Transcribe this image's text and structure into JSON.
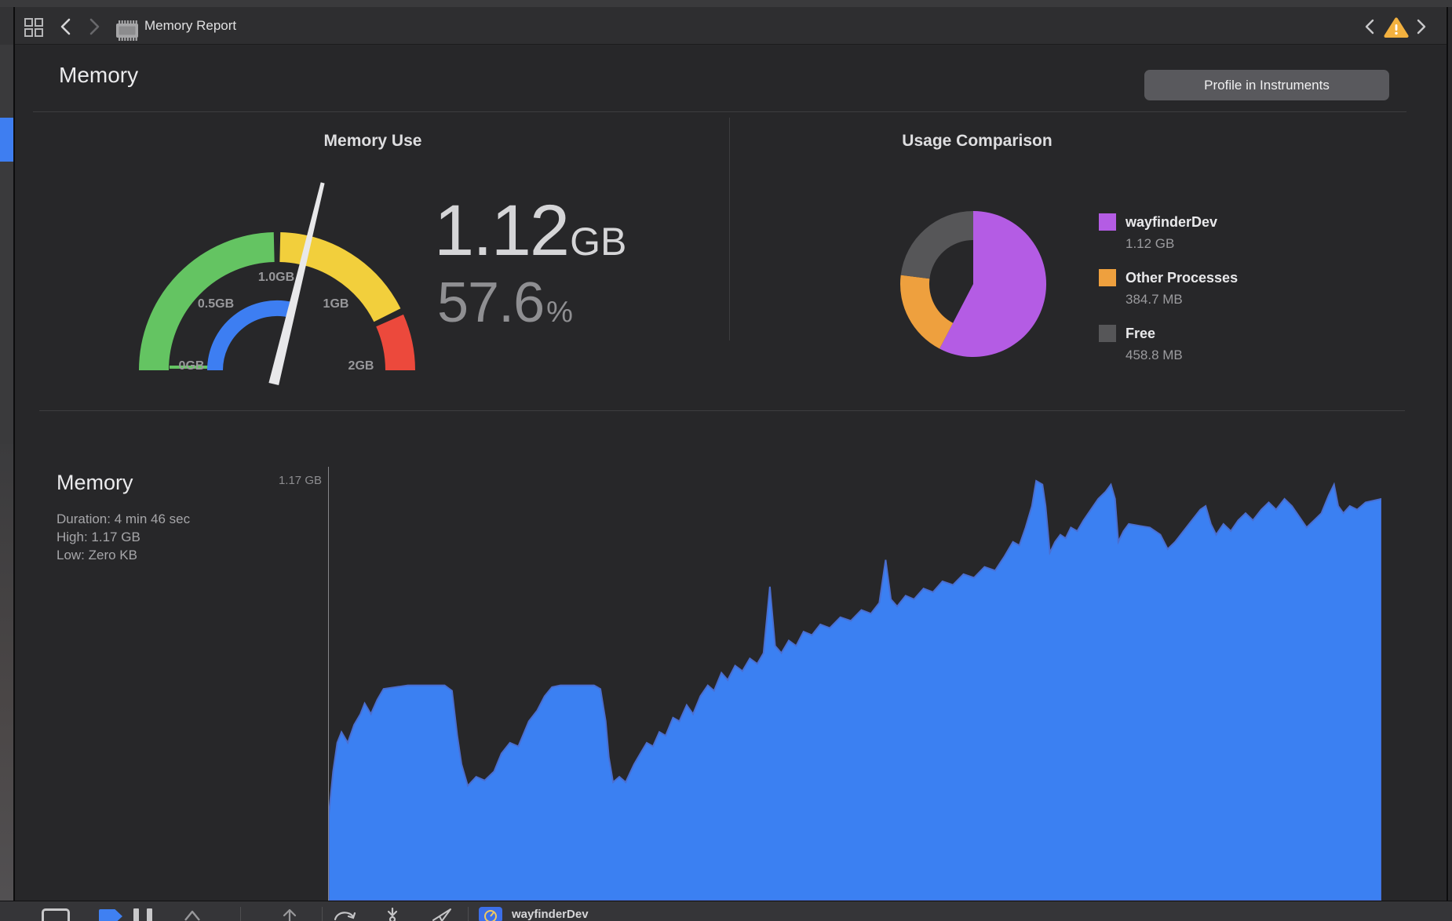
{
  "window": {
    "toolbar": {
      "title": "Memory Report"
    },
    "colors": {
      "warning": "#f3b13f",
      "accent_blue": "#3e7ef1"
    }
  },
  "header": {
    "title": "Memory",
    "profile_button": "Profile in Instruments"
  },
  "debug_bar": {
    "process": "wayfinderDev"
  },
  "chart_data": [
    {
      "type": "gauge",
      "title": "Memory Use",
      "value_label": "1.12",
      "unit": "GB",
      "percent": 57.6,
      "percent_label": "57.6",
      "percent_unit": "%",
      "min_gb": 0,
      "max_gb": 2,
      "tick_labels": [
        "0GB",
        "0.5GB",
        "1.0GB",
        "1GB",
        "2GB"
      ],
      "zones": [
        {
          "from": 0,
          "to": 1.0,
          "color": "#64c462"
        },
        {
          "from": 1.0,
          "to": 1.72,
          "color": "#f2cf3c"
        },
        {
          "from": 1.72,
          "to": 2.0,
          "color": "#ec493c"
        }
      ],
      "inner_arc_color": "#3d7ef2",
      "needle_color": "#e8e8ea",
      "start_tick_color": "#64c462"
    },
    {
      "type": "pie",
      "title": "Usage Comparison",
      "legend_position": "right",
      "slices": [
        {
          "label": "wayfinderDev",
          "value_mb": 1146.9,
          "display": "1.12 GB",
          "color": "#b45ce4",
          "style": "sector"
        },
        {
          "label": "Other Processes",
          "value_mb": 384.7,
          "display": "384.7 MB",
          "color": "#eea03e",
          "style": "ring"
        },
        {
          "label": "Free",
          "value_mb": 458.8,
          "display": "458.8 MB",
          "color": "#565658",
          "style": "ring"
        }
      ]
    },
    {
      "type": "area",
      "title": "Memory",
      "stats": [
        "Duration: 4 min 46 sec",
        "High: 1.17 GB",
        "Low: Zero KB"
      ],
      "axis_max_label": "1.17 GB",
      "x_range_seconds": [
        0,
        286
      ],
      "y_max_gb": 1.17,
      "color": "#3b80f2",
      "edge_color": "#4a6ed0",
      "grid": false,
      "points_frac_gb": [
        [
          0.0,
          0.24
        ],
        [
          0.004,
          0.36
        ],
        [
          0.008,
          0.44
        ],
        [
          0.012,
          0.47
        ],
        [
          0.018,
          0.44
        ],
        [
          0.024,
          0.49
        ],
        [
          0.03,
          0.52
        ],
        [
          0.034,
          0.55
        ],
        [
          0.04,
          0.52
        ],
        [
          0.046,
          0.56
        ],
        [
          0.052,
          0.59
        ],
        [
          0.075,
          0.6
        ],
        [
          0.11,
          0.6
        ],
        [
          0.117,
          0.585
        ],
        [
          0.122,
          0.46
        ],
        [
          0.126,
          0.38
        ],
        [
          0.132,
          0.32
        ],
        [
          0.14,
          0.345
        ],
        [
          0.148,
          0.335
        ],
        [
          0.157,
          0.36
        ],
        [
          0.164,
          0.41
        ],
        [
          0.172,
          0.44
        ],
        [
          0.18,
          0.43
        ],
        [
          0.19,
          0.5
        ],
        [
          0.198,
          0.53
        ],
        [
          0.205,
          0.57
        ],
        [
          0.212,
          0.595
        ],
        [
          0.22,
          0.6
        ],
        [
          0.252,
          0.6
        ],
        [
          0.258,
          0.59
        ],
        [
          0.263,
          0.5
        ],
        [
          0.266,
          0.4
        ],
        [
          0.27,
          0.33
        ],
        [
          0.276,
          0.345
        ],
        [
          0.282,
          0.33
        ],
        [
          0.29,
          0.38
        ],
        [
          0.296,
          0.41
        ],
        [
          0.302,
          0.44
        ],
        [
          0.308,
          0.43
        ],
        [
          0.314,
          0.47
        ],
        [
          0.32,
          0.46
        ],
        [
          0.327,
          0.51
        ],
        [
          0.333,
          0.5
        ],
        [
          0.34,
          0.545
        ],
        [
          0.346,
          0.52
        ],
        [
          0.353,
          0.57
        ],
        [
          0.36,
          0.6
        ],
        [
          0.366,
          0.585
        ],
        [
          0.373,
          0.635
        ],
        [
          0.379,
          0.615
        ],
        [
          0.386,
          0.655
        ],
        [
          0.393,
          0.64
        ],
        [
          0.4,
          0.675
        ],
        [
          0.407,
          0.66
        ],
        [
          0.413,
          0.69
        ],
        [
          0.419,
          0.875
        ],
        [
          0.424,
          0.71
        ],
        [
          0.43,
          0.69
        ],
        [
          0.437,
          0.725
        ],
        [
          0.444,
          0.71
        ],
        [
          0.451,
          0.75
        ],
        [
          0.459,
          0.74
        ],
        [
          0.467,
          0.77
        ],
        [
          0.476,
          0.76
        ],
        [
          0.486,
          0.79
        ],
        [
          0.496,
          0.78
        ],
        [
          0.506,
          0.81
        ],
        [
          0.515,
          0.8
        ],
        [
          0.523,
          0.83
        ],
        [
          0.529,
          0.95
        ],
        [
          0.534,
          0.84
        ],
        [
          0.54,
          0.82
        ],
        [
          0.548,
          0.85
        ],
        [
          0.556,
          0.84
        ],
        [
          0.565,
          0.87
        ],
        [
          0.574,
          0.86
        ],
        [
          0.583,
          0.89
        ],
        [
          0.593,
          0.88
        ],
        [
          0.603,
          0.91
        ],
        [
          0.613,
          0.9
        ],
        [
          0.623,
          0.93
        ],
        [
          0.633,
          0.92
        ],
        [
          0.642,
          0.96
        ],
        [
          0.65,
          1.0
        ],
        [
          0.656,
          0.99
        ],
        [
          0.662,
          1.04
        ],
        [
          0.668,
          1.1
        ],
        [
          0.672,
          1.17
        ],
        [
          0.678,
          1.16
        ],
        [
          0.681,
          1.1
        ],
        [
          0.685,
          0.97
        ],
        [
          0.69,
          1.0
        ],
        [
          0.695,
          1.02
        ],
        [
          0.7,
          1.01
        ],
        [
          0.705,
          1.04
        ],
        [
          0.711,
          1.03
        ],
        [
          0.717,
          1.06
        ],
        [
          0.724,
          1.09
        ],
        [
          0.731,
          1.12
        ],
        [
          0.738,
          1.14
        ],
        [
          0.743,
          1.16
        ],
        [
          0.747,
          1.12
        ],
        [
          0.75,
          1.0
        ],
        [
          0.755,
          1.03
        ],
        [
          0.76,
          1.05
        ],
        [
          0.77,
          1.045
        ],
        [
          0.78,
          1.04
        ],
        [
          0.79,
          1.02
        ],
        [
          0.797,
          0.98
        ],
        [
          0.804,
          1.0
        ],
        [
          0.812,
          1.03
        ],
        [
          0.82,
          1.06
        ],
        [
          0.828,
          1.09
        ],
        [
          0.833,
          1.1
        ],
        [
          0.838,
          1.05
        ],
        [
          0.843,
          1.02
        ],
        [
          0.85,
          1.05
        ],
        [
          0.857,
          1.03
        ],
        [
          0.864,
          1.06
        ],
        [
          0.871,
          1.08
        ],
        [
          0.878,
          1.06
        ],
        [
          0.886,
          1.09
        ],
        [
          0.893,
          1.11
        ],
        [
          0.9,
          1.09
        ],
        [
          0.908,
          1.12
        ],
        [
          0.915,
          1.1
        ],
        [
          0.922,
          1.07
        ],
        [
          0.929,
          1.04
        ],
        [
          0.936,
          1.06
        ],
        [
          0.943,
          1.08
        ],
        [
          0.95,
          1.13
        ],
        [
          0.955,
          1.16
        ],
        [
          0.959,
          1.1
        ],
        [
          0.964,
          1.08
        ],
        [
          0.97,
          1.1
        ],
        [
          0.977,
          1.09
        ],
        [
          0.985,
          1.11
        ],
        [
          1.0,
          1.12
        ]
      ]
    }
  ]
}
